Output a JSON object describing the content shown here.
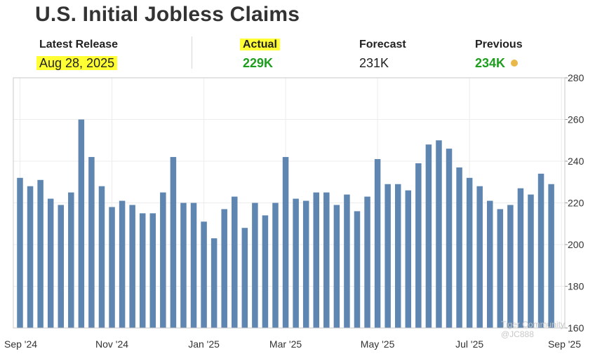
{
  "title": "U.S. Initial Jobless Claims",
  "stats": {
    "latest_release": {
      "label": "Latest Release",
      "value": "Aug 28, 2025"
    },
    "actual": {
      "label": "Actual",
      "value": "229K"
    },
    "forecast": {
      "label": "Forecast",
      "value": "231K"
    },
    "previous": {
      "label": "Previous",
      "value": "234K"
    }
  },
  "colors": {
    "bar": "#5f86b0",
    "green": "#1e9e1e",
    "highlight": "#ffff33",
    "dot": "#e8b84a"
  },
  "watermark": "Tiger Community @JC888",
  "chart_data": {
    "type": "bar",
    "title": "",
    "xlabel": "",
    "ylabel": "",
    "ylim": [
      160,
      280
    ],
    "yticks": [
      160,
      180,
      200,
      220,
      240,
      260,
      280
    ],
    "y_axis_position": "right",
    "grid": true,
    "x_tick_labels": [
      "Sep '24",
      "Nov '24",
      "Jan '25",
      "Mar '25",
      "May '25",
      "Jul '25",
      "Sep '25"
    ],
    "x_tick_bar_index": [
      0,
      9,
      18,
      26,
      35,
      44,
      53
    ],
    "values": [
      232,
      228,
      231,
      222,
      219,
      225,
      260,
      242,
      228,
      218,
      221,
      219,
      215,
      215,
      225,
      242,
      220,
      220,
      211,
      203,
      217,
      223,
      208,
      220,
      214,
      220,
      242,
      222,
      221,
      225,
      225,
      219,
      224,
      216,
      223,
      241,
      229,
      229,
      226,
      239,
      248,
      250,
      246,
      237,
      232,
      228,
      221,
      217,
      219,
      227,
      224,
      234,
      229
    ]
  }
}
